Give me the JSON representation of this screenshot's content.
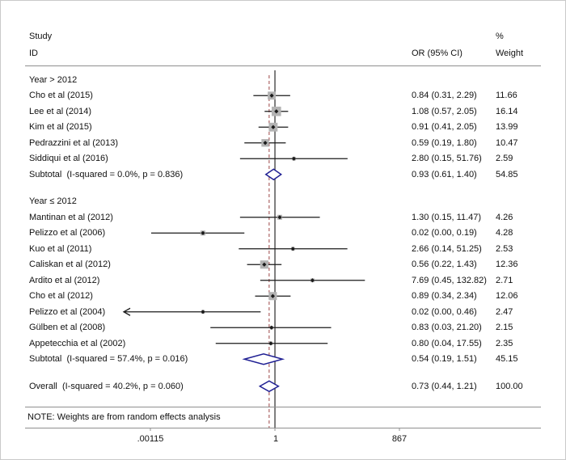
{
  "header": {
    "study": "Study",
    "id": "ID",
    "percent": "%",
    "or_col": "OR (95% CI)",
    "weight_col": "Weight"
  },
  "note": "NOTE: Weights are from random effects analysis",
  "colors": {
    "diamond": "#1f1f93",
    "dashed_line": "#9d4545",
    "weight_square": "#b3b3b3",
    "ci_line": "#1a1a1a",
    "null_line": "#2b2b2b",
    "rule": "#8f8f8f"
  },
  "chart_data": {
    "type": "forest",
    "scale": "log",
    "axis": {
      "min": 0.00115,
      "max": 867,
      "null_value": 1,
      "ticks": [
        {
          "label": ".00115",
          "value": 0.00115
        },
        {
          "label": "1",
          "value": 1
        },
        {
          "label": "867",
          "value": 867
        }
      ]
    },
    "groups": [
      {
        "label": "Year > 2012",
        "studies": [
          {
            "label": "Cho et al (2015)",
            "or": 0.84,
            "lo": 0.31,
            "hi": 2.29,
            "display": "0.84 (0.31, 2.29)",
            "weight": "11.66"
          },
          {
            "label": "Lee et al (2014)",
            "or": 1.08,
            "lo": 0.57,
            "hi": 2.05,
            "display": "1.08 (0.57, 2.05)",
            "weight": "16.14"
          },
          {
            "label": "Kim et al (2015)",
            "or": 0.91,
            "lo": 0.41,
            "hi": 2.05,
            "display": "0.91 (0.41, 2.05)",
            "weight": "13.99"
          },
          {
            "label": "Pedrazzini et al (2013)",
            "or": 0.59,
            "lo": 0.19,
            "hi": 1.8,
            "display": "0.59 (0.19, 1.80)",
            "weight": "10.47"
          },
          {
            "label": "Siddiqui et al (2016)",
            "or": 2.8,
            "lo": 0.15,
            "hi": 51.76,
            "display": "2.80 (0.15, 51.76)",
            "weight": "2.59"
          }
        ],
        "subtotal": {
          "label": "Subtotal  (I-squared = 0.0%, p = 0.836)",
          "or": 0.93,
          "lo": 0.61,
          "hi": 1.4,
          "display": "0.93 (0.61, 1.40)",
          "weight": "54.85"
        }
      },
      {
        "label": "Year ≤ 2012",
        "studies": [
          {
            "label": "Mantinan et al (2012)",
            "or": 1.3,
            "lo": 0.15,
            "hi": 11.47,
            "display": "1.30 (0.15, 11.47)",
            "weight": "4.26"
          },
          {
            "label": "Pelizzo et al (2006)",
            "or": 0.02,
            "lo": 0.0012,
            "hi": 0.19,
            "display": "0.02 (0.00, 0.19)",
            "weight": "4.28"
          },
          {
            "label": "Kuo et al (2011)",
            "or": 2.66,
            "lo": 0.14,
            "hi": 51.25,
            "display": "2.66 (0.14, 51.25)",
            "weight": "2.53"
          },
          {
            "label": "Caliskan et al (2012)",
            "or": 0.56,
            "lo": 0.22,
            "hi": 1.43,
            "display": "0.56 (0.22, 1.43)",
            "weight": "12.36"
          },
          {
            "label": "Ardito et al (2012)",
            "or": 7.69,
            "lo": 0.45,
            "hi": 132.82,
            "display": "7.69 (0.45, 132.82)",
            "weight": "2.71"
          },
          {
            "label": "Cho et al (2012)",
            "or": 0.89,
            "lo": 0.34,
            "hi": 2.34,
            "display": "0.89 (0.34, 2.34)",
            "weight": "12.06"
          },
          {
            "label": "Pelizzo et al (2004)",
            "or": 0.02,
            "lo": 0.0001,
            "hi": 0.46,
            "arrow_lo": true,
            "display": "0.02 (0.00, 0.46)",
            "weight": "2.47"
          },
          {
            "label": "Gülben et al (2008)",
            "or": 0.83,
            "lo": 0.03,
            "hi": 21.2,
            "display": "0.83 (0.03, 21.20)",
            "weight": "2.15"
          },
          {
            "label": "Appetecchia et al (2002)",
            "or": 0.8,
            "lo": 0.04,
            "hi": 17.55,
            "display": "0.80 (0.04, 17.55)",
            "weight": "2.35"
          }
        ],
        "subtotal": {
          "label": "Subtotal  (I-squared = 57.4%, p = 0.016)",
          "or": 0.54,
          "lo": 0.19,
          "hi": 1.51,
          "display": "0.54 (0.19, 1.51)",
          "weight": "45.15"
        }
      }
    ],
    "overall": {
      "label": "Overall  (I-squared = 40.2%, p = 0.060)",
      "or": 0.73,
      "lo": 0.44,
      "hi": 1.21,
      "display": "0.73 (0.44, 1.21)",
      "weight": "100.00"
    }
  }
}
